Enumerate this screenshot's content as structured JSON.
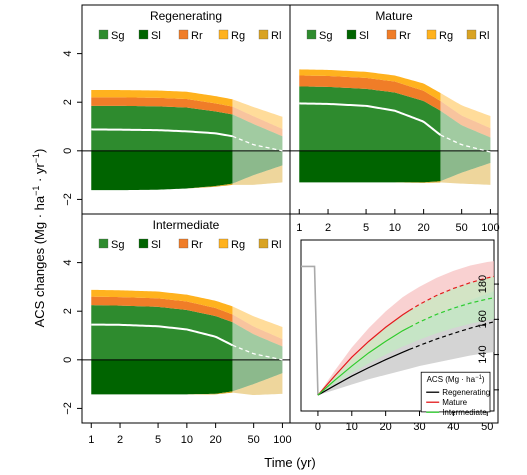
{
  "figure": {
    "ylabel": "ACS changes (Mg · ha",
    "ylabel_sup": "−1",
    "ylabel_mid": " · yr",
    "ylabel_sup2": "−1",
    "ylabel_end": ")",
    "xlabel": "Time (yr)"
  },
  "components": [
    {
      "key": "Sg",
      "label": "Sg",
      "color": "#2e8b2e"
    },
    {
      "key": "Sl",
      "label": "Sl",
      "color": "#006400"
    },
    {
      "key": "Rr",
      "label": "Rr",
      "color": "#f07d28"
    },
    {
      "key": "Rg",
      "label": "Rg",
      "color": "#ffb21e"
    },
    {
      "key": "Rl",
      "label": "Rl",
      "color": "#d9a323"
    }
  ],
  "chart_data": [
    {
      "type": "area",
      "title": "Regenerating",
      "xscale": "log",
      "x": [
        1,
        2,
        5,
        10,
        20,
        30,
        50,
        100
      ],
      "xticks": [
        1,
        2,
        5,
        10,
        20,
        50,
        100
      ],
      "yticks": [
        -2,
        0,
        2,
        4
      ],
      "ylim": [
        -2.6,
        6.0
      ],
      "xlim": [
        0.8,
        120
      ],
      "observed_until": 30,
      "series": [
        {
          "name": "Sg",
          "values": [
            1.85,
            1.85,
            1.83,
            1.78,
            1.62,
            1.5,
            1.1,
            0.6
          ]
        },
        {
          "name": "Rr",
          "values": [
            0.35,
            0.35,
            0.35,
            0.35,
            0.33,
            0.32,
            0.32,
            0.3
          ]
        },
        {
          "name": "Rg",
          "values": [
            0.3,
            0.3,
            0.3,
            0.3,
            0.3,
            0.3,
            0.38,
            0.5
          ]
        },
        {
          "name": "Sl",
          "values": [
            -1.62,
            -1.62,
            -1.6,
            -1.55,
            -1.45,
            -1.35,
            -1.0,
            -0.6
          ]
        },
        {
          "name": "Rl",
          "values": [
            0,
            0,
            0,
            0,
            -0.03,
            -0.05,
            -0.4,
            -0.7
          ]
        },
        {
          "name": "net",
          "values": [
            0.88,
            0.87,
            0.85,
            0.8,
            0.72,
            0.6,
            0.25,
            0.0
          ]
        }
      ]
    },
    {
      "type": "area",
      "title": "Mature",
      "xscale": "log",
      "x": [
        1,
        2,
        5,
        10,
        20,
        30,
        50,
        100
      ],
      "xticks": [
        1,
        2,
        5,
        10,
        20,
        50,
        100
      ],
      "yticks": [
        -2,
        0,
        2,
        4
      ],
      "ylim": [
        -2.6,
        6.0
      ],
      "xlim": [
        0.8,
        120
      ],
      "observed_until": 30,
      "series": [
        {
          "name": "Sg",
          "values": [
            2.65,
            2.63,
            2.55,
            2.4,
            2.05,
            1.65,
            1.05,
            0.55
          ]
        },
        {
          "name": "Rr",
          "values": [
            0.45,
            0.45,
            0.45,
            0.45,
            0.42,
            0.4,
            0.4,
            0.38
          ]
        },
        {
          "name": "Rg",
          "values": [
            0.25,
            0.25,
            0.25,
            0.25,
            0.3,
            0.33,
            0.42,
            0.5
          ]
        },
        {
          "name": "Sl",
          "values": [
            -1.3,
            -1.3,
            -1.3,
            -1.3,
            -1.3,
            -1.25,
            -0.9,
            -0.5
          ]
        },
        {
          "name": "Rl",
          "values": [
            0,
            0,
            0,
            0,
            -0.02,
            -0.05,
            -0.45,
            -0.9
          ]
        },
        {
          "name": "net",
          "values": [
            1.95,
            1.93,
            1.85,
            1.65,
            1.2,
            0.65,
            0.25,
            -0.05
          ]
        }
      ]
    },
    {
      "type": "area",
      "title": "Intermediate",
      "xscale": "log",
      "x": [
        1,
        2,
        5,
        10,
        20,
        30,
        50,
        100
      ],
      "xticks": [
        1,
        2,
        5,
        10,
        20,
        50,
        100
      ],
      "yticks": [
        -2,
        0,
        2,
        4
      ],
      "ylim": [
        -2.6,
        6.0
      ],
      "xlim": [
        0.8,
        120
      ],
      "observed_until": 30,
      "series": [
        {
          "name": "Sg",
          "values": [
            2.25,
            2.23,
            2.18,
            2.05,
            1.8,
            1.55,
            1.05,
            0.55
          ]
        },
        {
          "name": "Rr",
          "values": [
            0.35,
            0.35,
            0.35,
            0.35,
            0.33,
            0.32,
            0.32,
            0.3
          ]
        },
        {
          "name": "Rg",
          "values": [
            0.28,
            0.28,
            0.28,
            0.28,
            0.3,
            0.33,
            0.42,
            0.5
          ]
        },
        {
          "name": "Sl",
          "values": [
            -1.42,
            -1.42,
            -1.42,
            -1.42,
            -1.4,
            -1.3,
            -1.0,
            -0.55
          ]
        },
        {
          "name": "Rl",
          "values": [
            0,
            0,
            0,
            0,
            -0.02,
            -0.05,
            -0.45,
            -0.85
          ]
        },
        {
          "name": "net",
          "values": [
            1.45,
            1.44,
            1.38,
            1.25,
            0.95,
            0.6,
            0.25,
            0.0
          ]
        }
      ]
    },
    {
      "type": "line",
      "title": "",
      "xlim": [
        -5,
        52
      ],
      "ylim": [
        108,
        205
      ],
      "xticks": [
        0,
        10,
        20,
        30,
        40,
        50
      ],
      "yticks": [
        120,
        140,
        160,
        180
      ],
      "top_axis_ticks": [
        1,
        2,
        5,
        10,
        20,
        50,
        100
      ],
      "legend_title": "ACS (Mg · ha",
      "legend_title_sup": "−1",
      "legend_title_end": ")",
      "legend_position": "bottom-right",
      "observed_until": 27,
      "pre_disturbance": {
        "x": [
          -5,
          -1,
          0
        ],
        "y": [
          190,
          190,
          117
        ],
        "color": "#aaaaaa"
      },
      "series": [
        {
          "name": "Regenerating",
          "color": "#000000",
          "band_color": "#bdbdbd",
          "x": [
            0,
            5,
            10,
            15,
            20,
            25,
            27,
            30,
            35,
            40,
            45,
            50,
            52
          ],
          "y": [
            117,
            122.5,
            127.8,
            132.6,
            137.1,
            141.3,
            142.9,
            145.2,
            148.8,
            152.0,
            155.0,
            157.6,
            158.6
          ],
          "lower": [
            117,
            120,
            123,
            126,
            128.5,
            131,
            132,
            133.5,
            135.5,
            137.5,
            139.5,
            141,
            141.5
          ],
          "upper": [
            117,
            125,
            133,
            140,
            146.5,
            152.5,
            155,
            158,
            163,
            167,
            171,
            174.5,
            176
          ]
        },
        {
          "name": "Mature",
          "color": "#e31a1c",
          "band_color": "#f6b8b8",
          "x": [
            0,
            5,
            10,
            15,
            20,
            25,
            27,
            30,
            35,
            40,
            45,
            50,
            52
          ],
          "y": [
            117,
            128,
            138.5,
            147.5,
            155.5,
            162.5,
            165,
            168.5,
            173.5,
            177.5,
            180.8,
            183.5,
            184.3
          ],
          "lower": [
            117,
            125,
            133,
            140,
            146.5,
            152.5,
            155,
            158,
            163,
            167,
            171,
            174.5,
            176
          ],
          "upper": [
            117,
            131,
            144,
            155,
            164.5,
            172.5,
            175,
            178.5,
            183.5,
            187.5,
            190.5,
            192.5,
            193
          ]
        },
        {
          "name": "Intermediate",
          "color": "#2ecc2e",
          "band_color": "#bfeebf",
          "x": [
            0,
            5,
            10,
            15,
            20,
            25,
            27,
            30,
            35,
            40,
            45,
            50,
            52
          ],
          "y": [
            117,
            125.5,
            133.5,
            141,
            147.5,
            153.5,
            155.5,
            158.5,
            162.8,
            166.3,
            169.2,
            171.5,
            172.2
          ],
          "lower": [
            117,
            123.5,
            129.5,
            135,
            140,
            144.5,
            146,
            148.5,
            152,
            155,
            157.5,
            159.5,
            160.2
          ],
          "upper": [
            117,
            127.5,
            137.5,
            147,
            155,
            162.5,
            165,
            168.5,
            173.5,
            177.5,
            180.8,
            183.5,
            184.3
          ]
        }
      ]
    }
  ]
}
